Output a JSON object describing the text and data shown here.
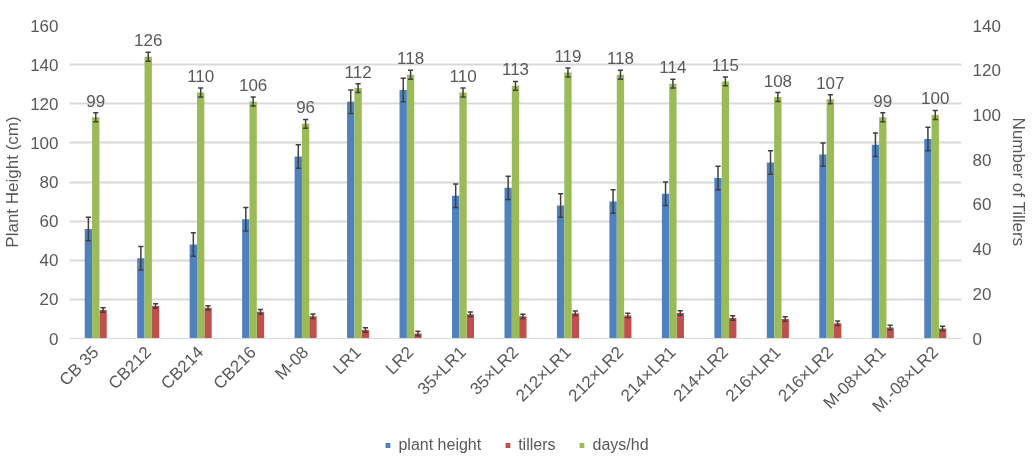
{
  "chart_data": {
    "type": "bar",
    "ylabel": "Plant Height (cm)",
    "y2label": "Number of Tillers",
    "categories": [
      "CB 35",
      "CB212",
      "CB214",
      "CB216",
      "M-08",
      "LR1",
      "LR2",
      "35×LR1",
      "35×LR2",
      "212×LR1",
      "212×LR2",
      "214×LR1",
      "214×LR2",
      "216×LR1",
      "216×LR2",
      "M-08×LR1",
      "M.-08×LR2"
    ],
    "series": [
      {
        "name": "plant height",
        "color": "#4f81bd",
        "values": [
          56,
          41,
          48,
          61,
          93,
          121,
          127,
          73,
          77,
          68,
          70,
          74,
          82,
          90,
          94,
          99,
          102
        ],
        "errors": [
          6,
          6,
          6,
          6,
          6,
          6,
          6,
          6,
          6,
          6,
          6,
          6,
          6,
          6,
          6,
          6,
          6
        ]
      },
      {
        "name": "tillers",
        "color": "#c0504d",
        "axis": "y2",
        "values": [
          12.7,
          14.5,
          13.7,
          12,
          10,
          3.8,
          2.2,
          10.8,
          9.9,
          11.3,
          10.3,
          11.4,
          9.2,
          8.7,
          6.8,
          4.9,
          4.5
        ],
        "errors": [
          1,
          1,
          1,
          1,
          1,
          1,
          1,
          1,
          1,
          1,
          1,
          1,
          1,
          1,
          1,
          1,
          1
        ]
      },
      {
        "name": "days/hd",
        "color": "#9bbb59",
        "axis": "y2",
        "values": [
          99,
          126,
          110,
          106,
          96,
          112,
          118,
          110,
          113,
          119,
          118,
          114,
          115,
          108,
          107,
          99,
          100
        ],
        "errors": [
          2,
          2,
          2,
          2,
          2,
          2,
          2,
          2,
          2,
          2,
          2,
          2,
          2,
          2,
          2,
          2,
          2
        ],
        "value_labels": [
          "99",
          "126",
          "110",
          "106",
          "96",
          "112",
          "118",
          "110",
          "113",
          "119",
          "118",
          "114",
          "115",
          "108",
          "107",
          "99",
          "100"
        ]
      }
    ],
    "ylim": [
      0,
      160
    ],
    "yticks": [
      0,
      20,
      40,
      60,
      80,
      100,
      120,
      140,
      160
    ],
    "y2lim": [
      0,
      140
    ],
    "y2ticks": [
      0,
      20,
      40,
      60,
      80,
      100,
      120,
      140
    ],
    "grid": "y",
    "legend": "bottom"
  }
}
